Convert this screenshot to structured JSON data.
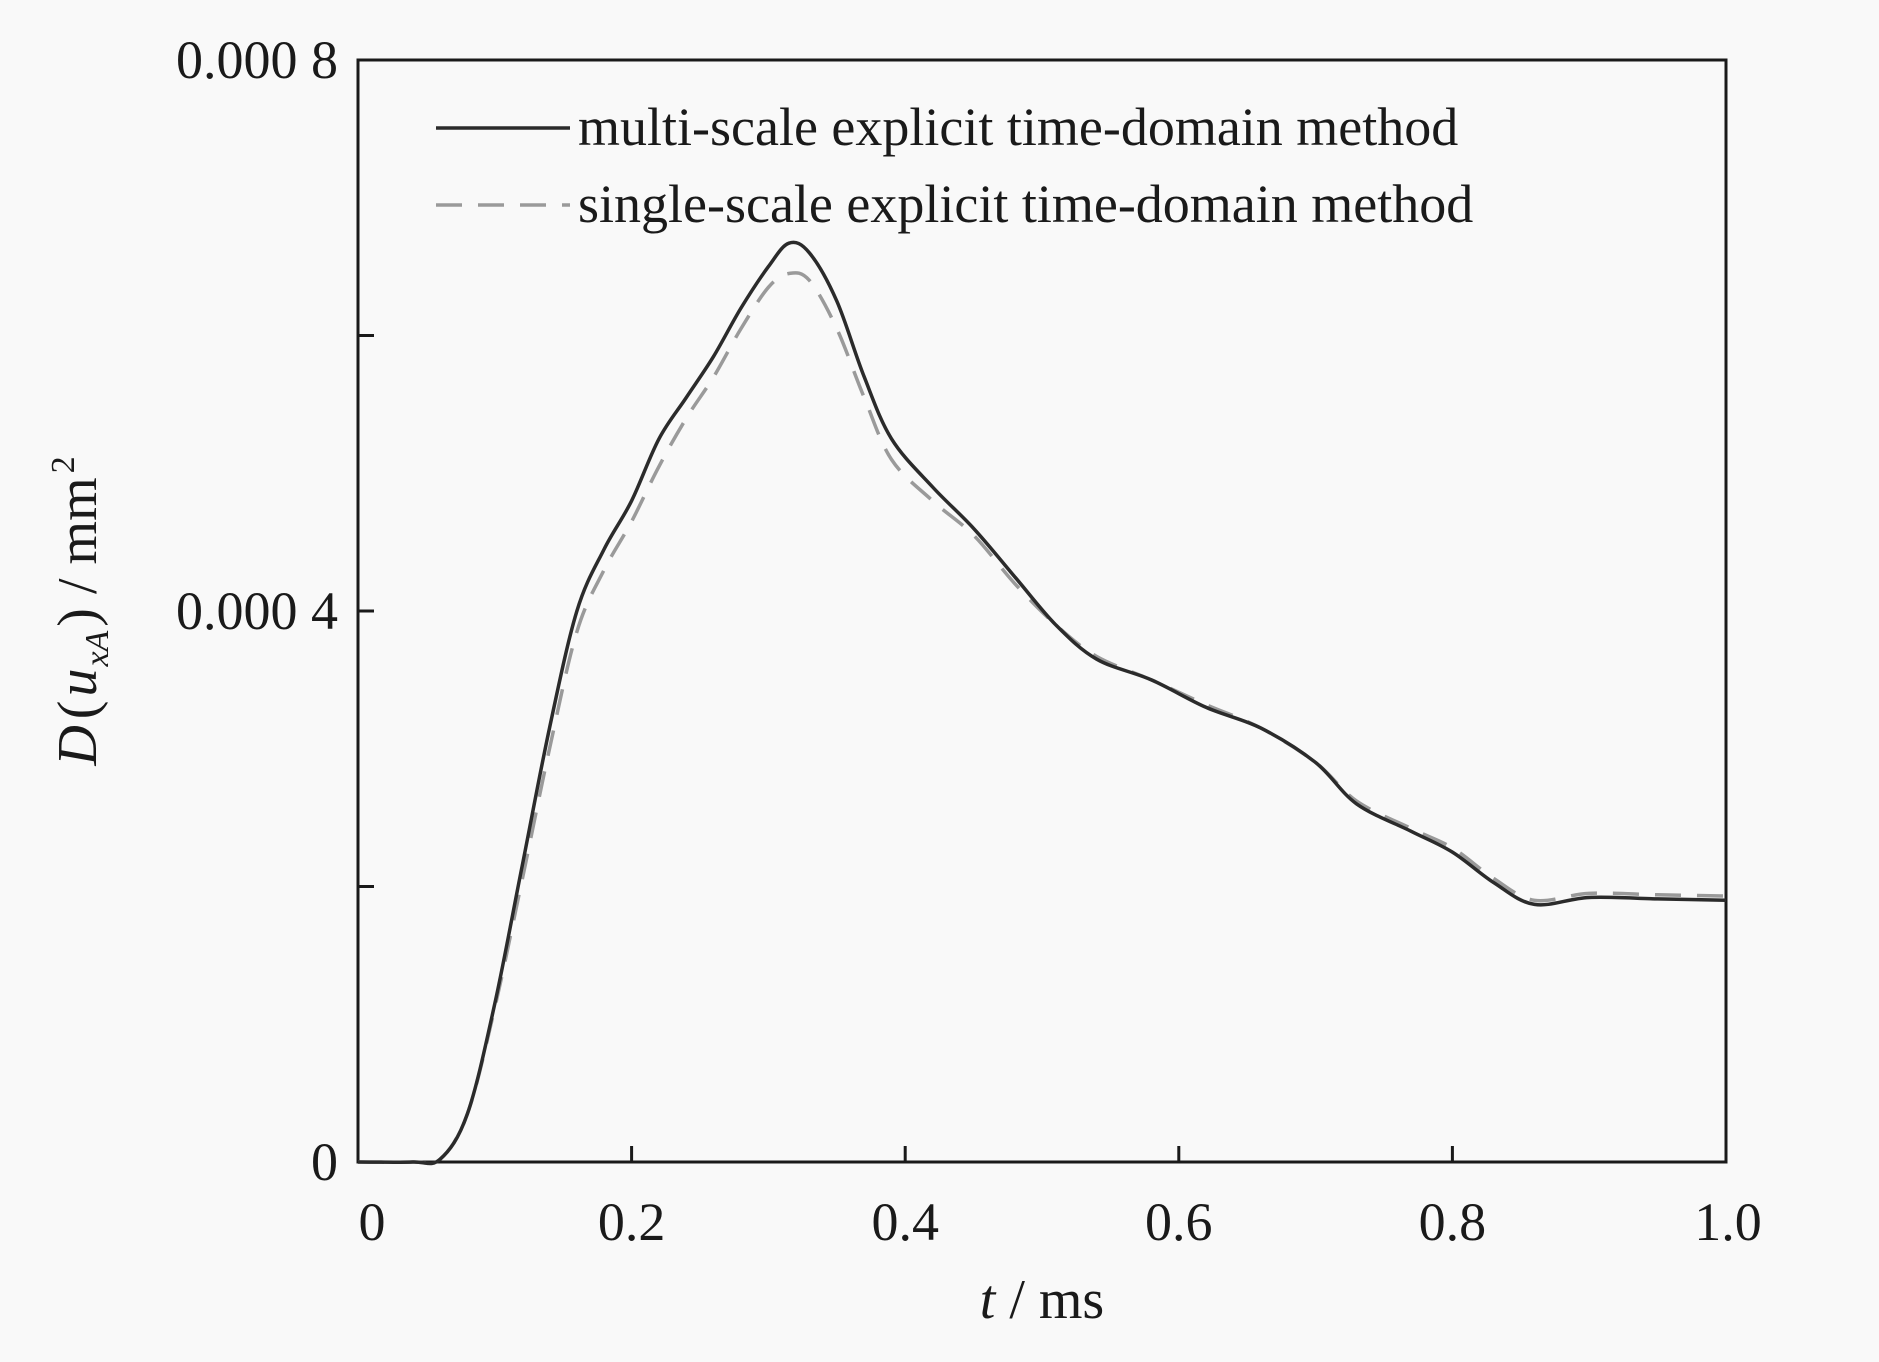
{
  "chart_data": {
    "type": "line",
    "title": "",
    "xlabel": {
      "var": "t",
      "unit": " / ms"
    },
    "ylabel": {
      "var": "D",
      "open": "(",
      "inner": "u",
      "sub": "xA",
      "close": ")",
      "unit": " / mm",
      "sup": "2"
    },
    "xlim": [
      0,
      1.0
    ],
    "ylim": [
      0,
      0.0008
    ],
    "x_ticks": [
      0,
      0.2,
      0.4,
      0.6,
      0.8,
      1.0
    ],
    "x_tick_labels": [
      "0",
      "0.2",
      "0.4",
      "0.6",
      "0.8",
      "1.0"
    ],
    "y_ticks": [
      0,
      0.0002,
      0.0004,
      0.0006,
      0.0008
    ],
    "y_tick_labels": [
      "0",
      "",
      "0.000 4",
      "",
      "0.000 8"
    ],
    "grid": false,
    "legend_position": "top-right",
    "series": [
      {
        "name": "multi-scale explicit time-domain method",
        "color": "#2b2b2b",
        "style": "solid",
        "points": [
          [
            0,
            0
          ],
          [
            0.04,
            0
          ],
          [
            0.06,
            2e-06
          ],
          [
            0.08,
            3.5e-05
          ],
          [
            0.1,
            0.000115
          ],
          [
            0.12,
            0.000215
          ],
          [
            0.14,
            0.000315
          ],
          [
            0.16,
            0.0004
          ],
          [
            0.18,
            0.000445
          ],
          [
            0.2,
            0.00048
          ],
          [
            0.22,
            0.000525
          ],
          [
            0.24,
            0.000555
          ],
          [
            0.26,
            0.000585
          ],
          [
            0.28,
            0.00062
          ],
          [
            0.3,
            0.00065
          ],
          [
            0.315,
            0.000667
          ],
          [
            0.33,
            0.00066
          ],
          [
            0.35,
            0.000625
          ],
          [
            0.37,
            0.00057
          ],
          [
            0.39,
            0.000525
          ],
          [
            0.42,
            0.00049
          ],
          [
            0.45,
            0.00046
          ],
          [
            0.48,
            0.000425
          ],
          [
            0.51,
            0.00039
          ],
          [
            0.54,
            0.000365
          ],
          [
            0.58,
            0.00035
          ],
          [
            0.62,
            0.00033
          ],
          [
            0.66,
            0.000315
          ],
          [
            0.7,
            0.00029
          ],
          [
            0.73,
            0.00026
          ],
          [
            0.77,
            0.00024
          ],
          [
            0.8,
            0.000225
          ],
          [
            0.83,
            0.000203
          ],
          [
            0.86,
            0.000187
          ],
          [
            0.9,
            0.000192
          ],
          [
            0.95,
            0.000191
          ],
          [
            1.0,
            0.00019
          ]
        ]
      },
      {
        "name": "single-scale explicit time-domain method",
        "color": "#9a9a9a",
        "style": "dashed",
        "points": [
          [
            0,
            0
          ],
          [
            0.04,
            0
          ],
          [
            0.06,
            2e-06
          ],
          [
            0.08,
            3.5e-05
          ],
          [
            0.1,
            0.000112
          ],
          [
            0.12,
            0.000205
          ],
          [
            0.14,
            0.0003
          ],
          [
            0.16,
            0.000385
          ],
          [
            0.18,
            0.00043
          ],
          [
            0.2,
            0.000465
          ],
          [
            0.22,
            0.000505
          ],
          [
            0.24,
            0.00054
          ],
          [
            0.26,
            0.00057
          ],
          [
            0.28,
            0.000605
          ],
          [
            0.3,
            0.000635
          ],
          [
            0.315,
            0.000645
          ],
          [
            0.33,
            0.00064
          ],
          [
            0.35,
            0.000605
          ],
          [
            0.37,
            0.000555
          ],
          [
            0.39,
            0.00051
          ],
          [
            0.42,
            0.00048
          ],
          [
            0.45,
            0.000455
          ],
          [
            0.48,
            0.00042
          ],
          [
            0.51,
            0.00039
          ],
          [
            0.54,
            0.000367
          ],
          [
            0.58,
            0.00035
          ],
          [
            0.62,
            0.000332
          ],
          [
            0.66,
            0.000315
          ],
          [
            0.7,
            0.00029
          ],
          [
            0.73,
            0.000262
          ],
          [
            0.77,
            0.000242
          ],
          [
            0.8,
            0.000228
          ],
          [
            0.83,
            0.000206
          ],
          [
            0.86,
            0.00019
          ],
          [
            0.9,
            0.000195
          ],
          [
            0.95,
            0.000194
          ],
          [
            1.0,
            0.000193
          ]
        ]
      }
    ]
  }
}
